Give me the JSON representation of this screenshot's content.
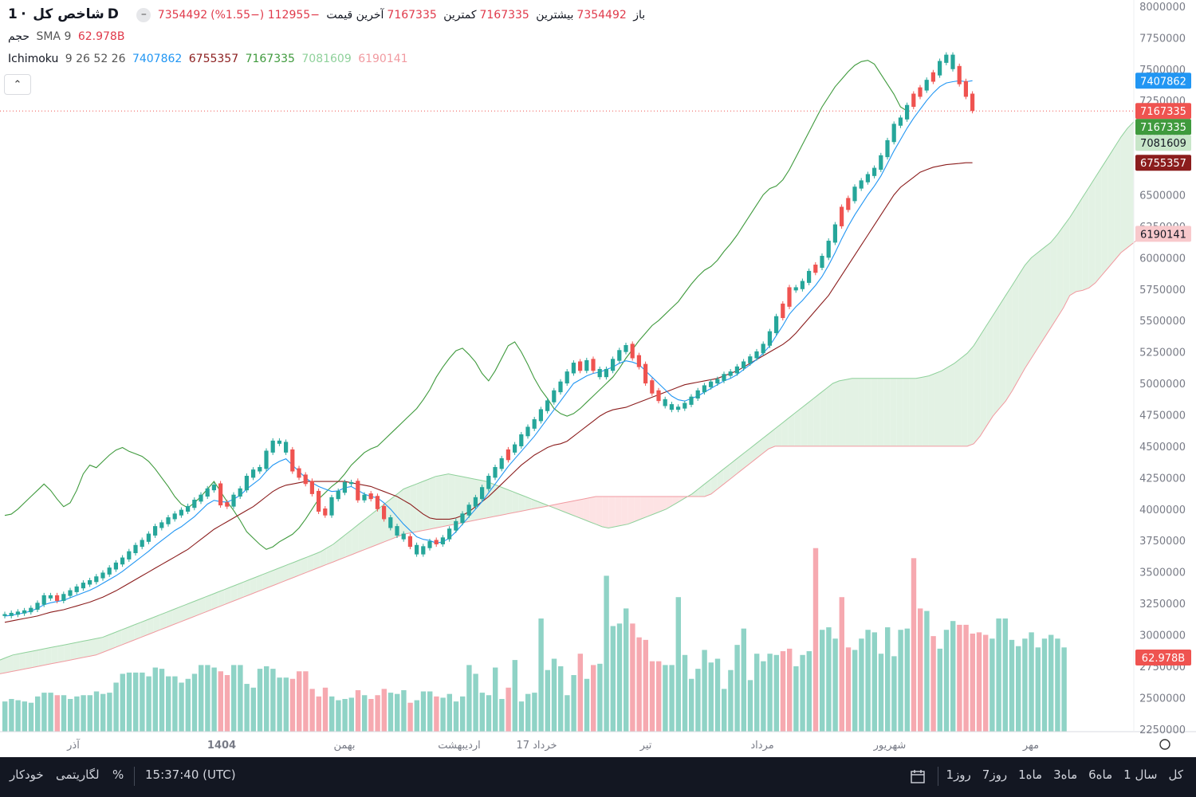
{
  "header": {
    "interval": "1D",
    "symbol": "شاخص کل",
    "toggle_glyph": "–",
    "open_label": "باز",
    "open_value": "7354492",
    "high_label": "بیشترین",
    "high_value": "7354492",
    "low_label": "کمترین",
    "low_value": "7167335",
    "close_label": "آخرین قیمت",
    "close_value": "7167335",
    "change": "−112955 (−1.55%)"
  },
  "volume_legend": {
    "name": "حجم",
    "ma": "SMA 9",
    "value": "62.978B"
  },
  "ichimoku_legend": {
    "name": "Ichimoku",
    "params": "9 26 52 26",
    "tenkan": "7407862",
    "kijun": "6755357",
    "chikou": "7167335",
    "span_a": "7081609",
    "span_b": "6190141"
  },
  "collapse_button": {
    "glyph": "⌃"
  },
  "colors": {
    "up": "#26a69a",
    "down": "#ef5350",
    "tenkan": "#2196f3",
    "kijun": "#8b1d1d",
    "chikou": "#3f9a3d",
    "span_a": "#8fd19b",
    "span_b": "#f19aa0",
    "cloud_bull": "#e3f2e4",
    "cloud_bear": "#fde3e4",
    "vol_up": "#8fd3c6",
    "vol_down": "#f6a9b0"
  },
  "chart_data": {
    "type": "candlestick",
    "y_ticks": [
      "8000000",
      "7750000",
      "7500000",
      "7250000",
      "7000000",
      "6750000",
      "6500000",
      "6250000",
      "6000000",
      "5750000",
      "5500000",
      "5250000",
      "5000000",
      "4750000",
      "4500000",
      "4250000",
      "4000000",
      "3750000",
      "3500000",
      "3250000",
      "3000000",
      "2750000",
      "2500000",
      "2250000"
    ],
    "ylim": [
      2230000,
      8050000
    ],
    "x_ticks": [
      "آذر",
      "1404",
      "بهمن",
      "اردیبهشت",
      "17 خرداد",
      "تیر",
      "مرداد",
      "شهریور",
      "مهر"
    ],
    "last_close_line": 7167335,
    "price_labels": [
      {
        "text": "7407862",
        "value": 7407862,
        "color": "#2196f3"
      },
      {
        "text": "7167335",
        "value": 7167335,
        "color": "#ef5350"
      },
      {
        "text": "7167335",
        "value": 7167335,
        "color": "#3f9a3d",
        "offset": 1
      },
      {
        "text": "7081609",
        "value": 7081609,
        "color": "#c8e6c9",
        "dark_text": true
      },
      {
        "text": "6755357",
        "value": 6755357,
        "color": "#8b1d1d"
      },
      {
        "text": "6190141",
        "value": 6190141,
        "color": "#f8c9cc",
        "dark_text": true
      }
    ],
    "volume_label": "62.978B",
    "closes": [
      3150000,
      3160000,
      3170000,
      3180000,
      3200000,
      3240000,
      3300000,
      3290000,
      3270000,
      3310000,
      3340000,
      3370000,
      3400000,
      3420000,
      3450000,
      3480000,
      3520000,
      3560000,
      3600000,
      3650000,
      3700000,
      3740000,
      3790000,
      3850000,
      3880000,
      3920000,
      3950000,
      3980000,
      4010000,
      4060000,
      4100000,
      4150000,
      4180000,
      4030000,
      4020000,
      4100000,
      4150000,
      4250000,
      4300000,
      4320000,
      4450000,
      4530000,
      4520000,
      4450000,
      4300000,
      4250000,
      4200000,
      4120000,
      3980000,
      3950000,
      4080000,
      4130000,
      4200000,
      4200000,
      4070000,
      4100000,
      4080000,
      4000000,
      3920000,
      3850000,
      3790000,
      3760000,
      3700000,
      3640000,
      3690000,
      3730000,
      3720000,
      3760000,
      3830000,
      3890000,
      3950000,
      4020000,
      4080000,
      4160000,
      4250000,
      4320000,
      4390000,
      4450000,
      4500000,
      4580000,
      4640000,
      4700000,
      4780000,
      4850000,
      4930000,
      5000000,
      5080000,
      5150000,
      5100000,
      5170000,
      5100000,
      5050000,
      5100000,
      5180000,
      5250000,
      5290000,
      5200000,
      5130000,
      5000000,
      4920000,
      4860000,
      4820000,
      4790000,
      4800000,
      4830000,
      4880000,
      4930000,
      4970000,
      5000000,
      5020000,
      5060000,
      5080000,
      5120000,
      5160000,
      5200000,
      5240000,
      5300000,
      5400000,
      5520000,
      5610000,
      5740000,
      5750000,
      5800000,
      5880000,
      5920000,
      6000000,
      6120000,
      6250000,
      6380000,
      6450000,
      6550000,
      6600000,
      6650000,
      6700000,
      6800000,
      6920000,
      7050000,
      7100000,
      7200000,
      7280000,
      7330000,
      7400000,
      7450000,
      7550000,
      7600000,
      7500000,
      7380000,
      7280000,
      7167335
    ],
    "down_idx": [
      8,
      33,
      34,
      44,
      45,
      46,
      47,
      48,
      49,
      54,
      56,
      57,
      58,
      62,
      66,
      77,
      88,
      90,
      96,
      97,
      98,
      99,
      100,
      119,
      120,
      124,
      128,
      129,
      139,
      140,
      142,
      146,
      147,
      148,
      149,
      150
    ],
    "tenkan": [
      3150000,
      3155000,
      3165000,
      3175000,
      3190000,
      3210000,
      3240000,
      3255000,
      3265000,
      3275000,
      3295000,
      3315000,
      3335000,
      3355000,
      3380000,
      3410000,
      3440000,
      3470000,
      3505000,
      3545000,
      3585000,
      3625000,
      3665000,
      3710000,
      3750000,
      3790000,
      3830000,
      3860000,
      3900000,
      3940000,
      3990000,
      4040000,
      4070000,
      4060000,
      4055000,
      4080000,
      4110000,
      4160000,
      4200000,
      4240000,
      4300000,
      4350000,
      4380000,
      4400000,
      4350000,
      4300000,
      4250000,
      4210000,
      4180000,
      4160000,
      4140000,
      4145000,
      4170000,
      4180000,
      4150000,
      4120000,
      4100000,
      4090000,
      4050000,
      4000000,
      3940000,
      3880000,
      3830000,
      3780000,
      3760000,
      3750000,
      3730000,
      3740000,
      3770000,
      3820000,
      3880000,
      3940000,
      4000000,
      4060000,
      4130000,
      4200000,
      4270000,
      4340000,
      4400000,
      4460000,
      4520000,
      4580000,
      4650000,
      4720000,
      4790000,
      4860000,
      4930000,
      5000000,
      5030000,
      5060000,
      5080000,
      5090000,
      5110000,
      5130000,
      5160000,
      5180000,
      5170000,
      5150000,
      5100000,
      5050000,
      5000000,
      4950000,
      4900000,
      4870000,
      4860000,
      4880000,
      4900000,
      4930000,
      4960000,
      4990000,
      5020000,
      5040000,
      5070000,
      5110000,
      5150000,
      5190000,
      5240000,
      5300000,
      5380000,
      5460000,
      5550000,
      5610000,
      5660000,
      5720000,
      5780000,
      5850000,
      5940000,
      6040000,
      6150000,
      6250000,
      6340000,
      6420000,
      6500000,
      6570000,
      6650000,
      6750000,
      6850000,
      6940000,
      7030000,
      7110000,
      7180000,
      7250000,
      7310000,
      7360000,
      7390000,
      7400000,
      7407862,
      7400000,
      7407862
    ],
    "kijun": [
      3100000,
      3110000,
      3120000,
      3130000,
      3140000,
      3150000,
      3165000,
      3180000,
      3190000,
      3200000,
      3215000,
      3230000,
      3245000,
      3260000,
      3280000,
      3300000,
      3325000,
      3350000,
      3380000,
      3410000,
      3440000,
      3470000,
      3500000,
      3530000,
      3560000,
      3590000,
      3620000,
      3650000,
      3680000,
      3720000,
      3760000,
      3800000,
      3840000,
      3870000,
      3900000,
      3930000,
      3960000,
      3990000,
      4020000,
      4060000,
      4100000,
      4140000,
      4170000,
      4190000,
      4200000,
      4210000,
      4220000,
      4220000,
      4220000,
      4220000,
      4220000,
      4220000,
      4220000,
      4210000,
      4200000,
      4190000,
      4180000,
      4160000,
      4140000,
      4120000,
      4100000,
      4070000,
      4040000,
      4000000,
      3960000,
      3930000,
      3920000,
      3920000,
      3920000,
      3930000,
      3950000,
      3980000,
      4020000,
      4060000,
      4100000,
      4150000,
      4200000,
      4250000,
      4300000,
      4350000,
      4390000,
      4430000,
      4460000,
      4490000,
      4510000,
      4520000,
      4540000,
      4580000,
      4620000,
      4660000,
      4700000,
      4740000,
      4770000,
      4790000,
      4800000,
      4810000,
      4830000,
      4850000,
      4870000,
      4890000,
      4910000,
      4930000,
      4950000,
      4970000,
      4990000,
      5000000,
      5010000,
      5020000,
      5030000,
      5040000,
      5060000,
      5080000,
      5100000,
      5130000,
      5160000,
      5190000,
      5220000,
      5250000,
      5280000,
      5310000,
      5350000,
      5400000,
      5460000,
      5520000,
      5580000,
      5640000,
      5700000,
      5780000,
      5860000,
      5940000,
      6020000,
      6100000,
      6180000,
      6260000,
      6340000,
      6420000,
      6500000,
      6560000,
      6600000,
      6640000,
      6680000,
      6700000,
      6720000,
      6730000,
      6740000,
      6745000,
      6750000,
      6755357,
      6755357
    ],
    "chikou": [
      3950000,
      3960000,
      4000000,
      4050000,
      4100000,
      4150000,
      4200000,
      4150000,
      4080000,
      4020000,
      4050000,
      4150000,
      4280000,
      4350000,
      4330000,
      4380000,
      4430000,
      4470000,
      4490000,
      4460000,
      4440000,
      4420000,
      4380000,
      4320000,
      4250000,
      4180000,
      4100000,
      4040000,
      4010000,
      4050000,
      4100000,
      4160000,
      4220000,
      4140000,
      4060000,
      3990000,
      3910000,
      3820000,
      3770000,
      3720000,
      3680000,
      3700000,
      3740000,
      3770000,
      3800000,
      3850000,
      3920000,
      4000000,
      4080000,
      4130000,
      4180000,
      4220000,
      4280000,
      4350000,
      4400000,
      4450000,
      4480000,
      4500000,
      4550000,
      4600000,
      4650000,
      4700000,
      4750000,
      4800000,
      4870000,
      4950000,
      5050000,
      5130000,
      5200000,
      5260000,
      5280000,
      5230000,
      5170000,
      5080000,
      5020000,
      5100000,
      5200000,
      5300000,
      5330000,
      5250000,
      5150000,
      5040000,
      4950000,
      4880000,
      4800000,
      4760000,
      4740000,
      4760000,
      4800000,
      4850000,
      4900000,
      4950000,
      5000000,
      5050000,
      5120000,
      5200000,
      5270000,
      5340000,
      5400000,
      5460000,
      5500000,
      5550000,
      5600000,
      5650000,
      5720000,
      5790000,
      5850000,
      5900000,
      5930000,
      5980000,
      6050000,
      6110000,
      6180000,
      6260000,
      6340000,
      6420000,
      6500000,
      6550000,
      6570000,
      6620000,
      6700000,
      6800000,
      6900000,
      7000000,
      7100000,
      7200000,
      7280000,
      7360000,
      7420000,
      7480000,
      7530000,
      7560000,
      7570000,
      7540000,
      7460000,
      7380000,
      7300000,
      7200000,
      7167335
    ],
    "span_a": [
      2800000,
      2820000,
      2840000,
      2850000,
      2860000,
      2870000,
      2880000,
      2890000,
      2900000,
      2910000,
      2920000,
      2930000,
      2940000,
      2950000,
      2960000,
      2970000,
      2980000,
      3000000,
      3020000,
      3040000,
      3060000,
      3080000,
      3100000,
      3120000,
      3140000,
      3160000,
      3180000,
      3200000,
      3220000,
      3240000,
      3260000,
      3280000,
      3300000,
      3320000,
      3340000,
      3360000,
      3380000,
      3400000,
      3420000,
      3440000,
      3460000,
      3480000,
      3500000,
      3520000,
      3540000,
      3560000,
      3580000,
      3600000,
      3620000,
      3640000,
      3660000,
      3690000,
      3720000,
      3760000,
      3800000,
      3840000,
      3880000,
      3920000,
      3960000,
      4000000,
      4040000,
      4080000,
      4120000,
      4160000,
      4180000,
      4200000,
      4220000,
      4240000,
      4260000,
      4270000,
      4280000,
      4270000,
      4260000,
      4250000,
      4240000,
      4230000,
      4220000,
      4200000,
      4180000,
      4160000,
      4140000,
      4120000,
      4100000,
      4080000,
      4060000,
      4040000,
      4020000,
      4000000,
      3980000,
      3960000,
      3940000,
      3920000,
      3900000,
      3880000,
      3860000,
      3850000,
      3860000,
      3870000,
      3880000,
      3900000,
      3920000,
      3940000,
      3960000,
      3980000,
      4000000,
      4030000,
      4060000,
      4090000,
      4120000,
      4160000,
      4200000,
      4240000,
      4280000,
      4320000,
      4360000,
      4400000,
      4440000,
      4480000,
      4520000,
      4560000,
      4600000,
      4640000,
      4680000,
      4720000,
      4760000,
      4800000,
      4840000,
      4880000,
      4920000,
      4960000,
      5000000,
      5020000,
      5030000,
      5040000,
      5040000,
      5040000,
      5040000,
      5040000,
      5040000,
      5040000,
      5040000,
      5040000,
      5040000,
      5040000,
      5050000,
      5060000,
      5080000,
      5100000,
      5130000,
      5160000,
      5200000,
      5240000,
      5300000,
      5380000,
      5460000,
      5540000,
      5620000,
      5700000,
      5780000,
      5860000,
      5940000,
      6000000,
      6040000,
      6080000,
      6120000,
      6180000,
      6250000,
      6320000,
      6400000,
      6480000,
      6560000,
      6640000,
      6720000,
      6800000,
      6880000,
      6960000,
      7030000,
      7081609
    ],
    "span_b": [
      2690000,
      2700000,
      2710000,
      2720000,
      2730000,
      2740000,
      2750000,
      2760000,
      2770000,
      2780000,
      2790000,
      2800000,
      2810000,
      2820000,
      2830000,
      2840000,
      2860000,
      2880000,
      2900000,
      2920000,
      2940000,
      2960000,
      2980000,
      3000000,
      3020000,
      3040000,
      3060000,
      3080000,
      3100000,
      3120000,
      3140000,
      3160000,
      3180000,
      3200000,
      3220000,
      3240000,
      3260000,
      3280000,
      3300000,
      3320000,
      3340000,
      3360000,
      3380000,
      3400000,
      3420000,
      3440000,
      3460000,
      3480000,
      3500000,
      3520000,
      3540000,
      3560000,
      3580000,
      3600000,
      3620000,
      3640000,
      3660000,
      3680000,
      3700000,
      3720000,
      3740000,
      3760000,
      3780000,
      3800000,
      3810000,
      3820000,
      3830000,
      3840000,
      3850000,
      3860000,
      3870000,
      3880000,
      3890000,
      3900000,
      3910000,
      3920000,
      3930000,
      3940000,
      3950000,
      3960000,
      3970000,
      3980000,
      3990000,
      4000000,
      4010000,
      4020000,
      4030000,
      4040000,
      4050000,
      4060000,
      4070000,
      4080000,
      4090000,
      4100000,
      4100000,
      4100000,
      4100000,
      4100000,
      4100000,
      4100000,
      4100000,
      4100000,
      4100000,
      4100000,
      4100000,
      4100000,
      4100000,
      4100000,
      4100000,
      4100000,
      4100000,
      4120000,
      4160000,
      4200000,
      4240000,
      4280000,
      4320000,
      4360000,
      4400000,
      4440000,
      4480000,
      4500000,
      4500000,
      4500000,
      4500000,
      4500000,
      4500000,
      4500000,
      4500000,
      4500000,
      4500000,
      4500000,
      4500000,
      4500000,
      4500000,
      4500000,
      4500000,
      4500000,
      4500000,
      4500000,
      4500000,
      4500000,
      4500000,
      4500000,
      4500000,
      4500000,
      4500000,
      4500000,
      4500000,
      4500000,
      4500000,
      4500000,
      4520000,
      4580000,
      4660000,
      4740000,
      4800000,
      4860000,
      4940000,
      5030000,
      5120000,
      5200000,
      5280000,
      5360000,
      5440000,
      5520000,
      5600000,
      5700000,
      5730000,
      5740000,
      5760000,
      5800000,
      5860000,
      5920000,
      5980000,
      6040000,
      6080000,
      6120000,
      6160000,
      6190141
    ],
    "volume": [
      2.47,
      2.49,
      2.48,
      2.47,
      2.46,
      2.51,
      2.54,
      2.54,
      2.52,
      2.52,
      2.49,
      2.51,
      2.52,
      2.52,
      2.55,
      2.53,
      2.54,
      2.62,
      2.69,
      2.7,
      2.7,
      2.7,
      2.67,
      2.74,
      2.73,
      2.67,
      2.67,
      2.62,
      2.65,
      2.69,
      2.76,
      2.76,
      2.74,
      2.71,
      2.68,
      2.76,
      2.76,
      2.61,
      2.58,
      2.73,
      2.75,
      2.73,
      2.66,
      2.66,
      2.65,
      2.71,
      2.71,
      2.57,
      2.51,
      2.58,
      2.51,
      2.48,
      2.49,
      2.5,
      2.56,
      2.52,
      2.49,
      2.52,
      2.57,
      2.54,
      2.53,
      2.56,
      2.46,
      2.48,
      2.55,
      2.55,
      2.51,
      2.5,
      2.53,
      2.47,
      2.51,
      2.76,
      2.69,
      2.54,
      2.52,
      2.74,
      2.49,
      2.58,
      2.8,
      2.47,
      2.53,
      2.54,
      3.13,
      2.72,
      2.81,
      2.75,
      2.52,
      2.68,
      2.85,
      2.65,
      2.76,
      2.77,
      3.47,
      3.07,
      3.09,
      3.21,
      3.09,
      2.98,
      2.96,
      2.79,
      2.79,
      2.76,
      2.76,
      3.3,
      2.84,
      2.65,
      2.73,
      2.88,
      2.78,
      2.81,
      2.57,
      2.72,
      2.92,
      3.05,
      2.64,
      2.85,
      2.79,
      2.85,
      2.84,
      2.87,
      2.89,
      2.75,
      2.84,
      2.87,
      3.69,
      3.04,
      3.06,
      2.97,
      3.3,
      2.9,
      2.88,
      2.97,
      3.04,
      3.02,
      2.85,
      3.06,
      2.83,
      3.04,
      3.05,
      3.61,
      3.21,
      3.19,
      2.99,
      2.89,
      3.04,
      3.11,
      3.08,
      3.08,
      3.01,
      3.02,
      3.0,
      2.97,
      3.13,
      3.13,
      2.96,
      2.91,
      2.97,
      3.02,
      2.9,
      2.97,
      3.0,
      2.97,
      2.9
    ]
  },
  "bottom_bar": {
    "ranges": [
      "کل",
      "1 سال",
      "6ماه",
      "3ماه",
      "1ماه",
      "7روز",
      "1روز"
    ],
    "time": "15:37:40 (UTC)",
    "percent": "%",
    "log": "لگاریتمی",
    "auto": "خودکار"
  }
}
